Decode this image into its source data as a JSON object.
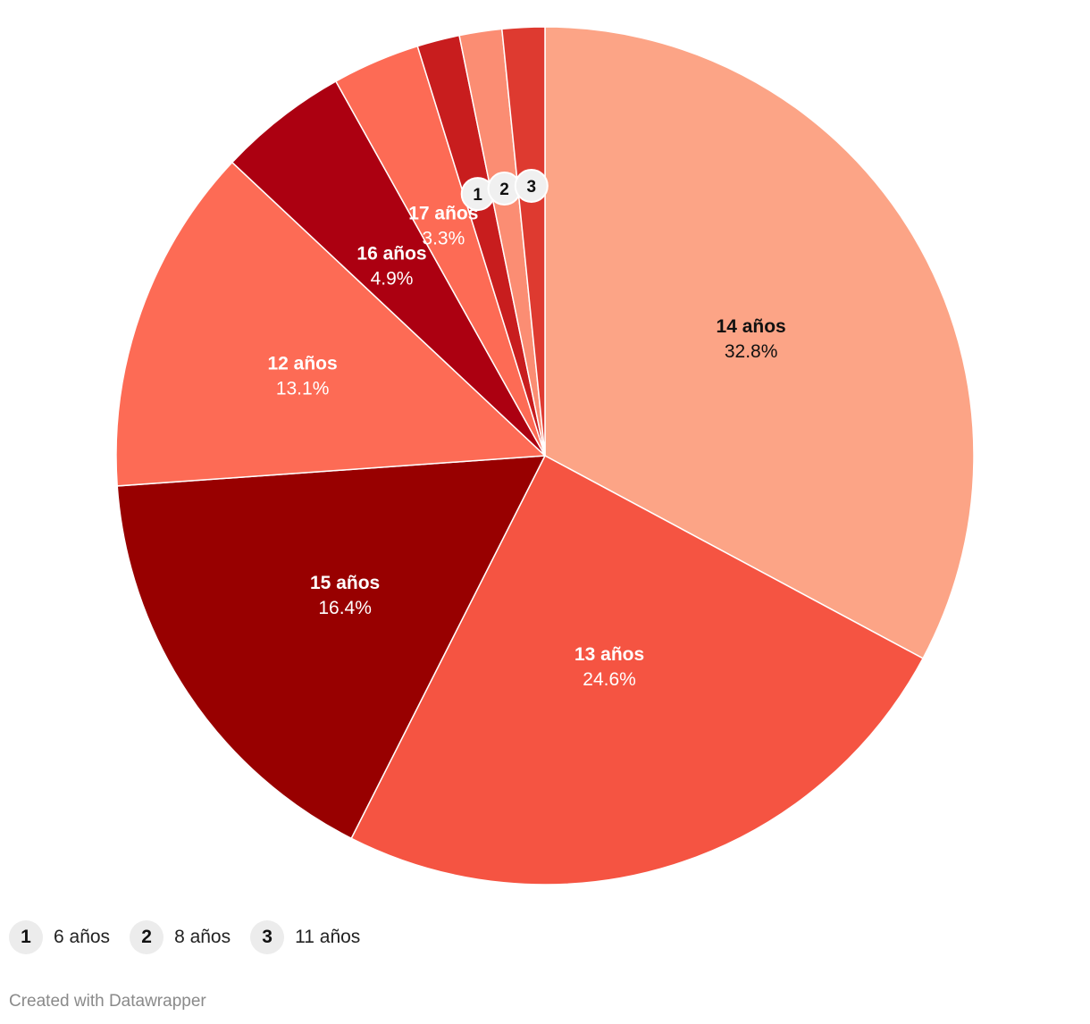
{
  "chart_data": {
    "type": "pie",
    "slices": [
      {
        "label": "14 años",
        "value": 32.8,
        "value_label": "32.8%",
        "color": "#fca486",
        "text_color": "#111111"
      },
      {
        "label": "13 años",
        "value": 24.6,
        "value_label": "24.6%",
        "color": "#f55442",
        "text_color": "#ffffff"
      },
      {
        "label": "15 años",
        "value": 16.4,
        "value_label": "16.4%",
        "color": "#980000",
        "text_color": "#ffffff"
      },
      {
        "label": "12 años",
        "value": 13.1,
        "value_label": "13.1%",
        "color": "#fd6b55",
        "text_color": "#ffffff"
      },
      {
        "label": "16 años",
        "value": 4.9,
        "value_label": "4.9%",
        "color": "#ac0011",
        "text_color": "#ffffff"
      },
      {
        "label": "17 años",
        "value": 3.3,
        "value_label": "3.3%",
        "color": "#fd6b55",
        "text_color": "#ffffff"
      },
      {
        "label": "6 años",
        "value": 1.6,
        "marker": "1",
        "color": "#c81d1e"
      },
      {
        "label": "8 años",
        "value": 1.6,
        "marker": "2",
        "color": "#fb8d73"
      },
      {
        "label": "11 años",
        "value": 1.6,
        "marker": "3",
        "color": "#de3a30"
      }
    ]
  },
  "legend": [
    {
      "num": "1",
      "label": "6 años"
    },
    {
      "num": "2",
      "label": "8 años"
    },
    {
      "num": "3",
      "label": "11 años"
    }
  ],
  "credit": "Created with Datawrapper"
}
